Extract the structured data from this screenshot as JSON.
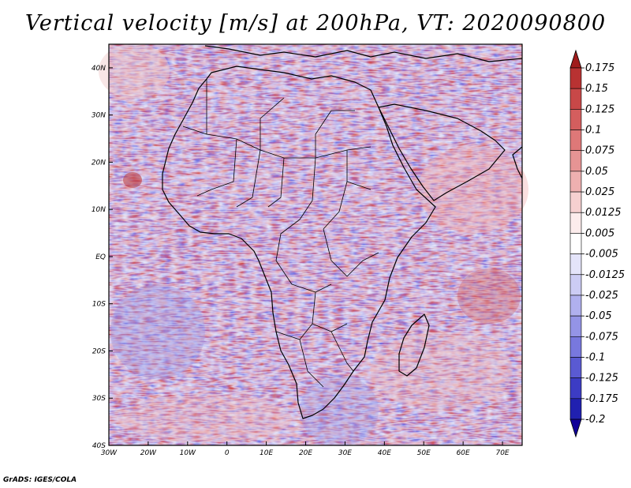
{
  "title": "Vertical velocity [m/s] at 200hPa, VT: 2020090800",
  "credit": "GrADS: IGES/COLA",
  "map": {
    "variable": "Vertical velocity",
    "units": "m/s",
    "level": "200hPa",
    "valid_time": "2020090800",
    "lon_range": [
      -30,
      75
    ],
    "lat_range": [
      -40,
      45
    ],
    "x_ticks": [
      "30W",
      "20W",
      "10W",
      "0",
      "10E",
      "20E",
      "30E",
      "40E",
      "50E",
      "60E",
      "70E"
    ],
    "x_tick_values": [
      -30,
      -20,
      -10,
      0,
      10,
      20,
      30,
      40,
      50,
      60,
      70
    ],
    "y_ticks": [
      "40N",
      "30N",
      "20N",
      "10N",
      "EQ",
      "10S",
      "20S",
      "30S",
      "40S"
    ],
    "y_tick_values": [
      40,
      30,
      20,
      10,
      0,
      -10,
      -20,
      -30,
      -40
    ]
  },
  "colorbar": {
    "labels": [
      "0.175",
      "0.15",
      "0.125",
      "0.1",
      "0.075",
      "0.05",
      "0.025",
      "0.0125",
      "0.005",
      "-0.005",
      "-0.0125",
      "-0.025",
      "-0.05",
      "-0.075",
      "-0.1",
      "-0.125",
      "-0.175",
      "-0.2"
    ],
    "colors": [
      "#a01c1c",
      "#b83232",
      "#c84848",
      "#d45e5e",
      "#de7878",
      "#e69494",
      "#eeb0b0",
      "#f6d0d0",
      "#fcecec",
      "#ffffff",
      "#e4e4fa",
      "#ccccf4",
      "#b0b0ee",
      "#9494e6",
      "#7878de",
      "#5a5ad2",
      "#3c3cc4",
      "#2020b0",
      "#100098"
    ]
  }
}
